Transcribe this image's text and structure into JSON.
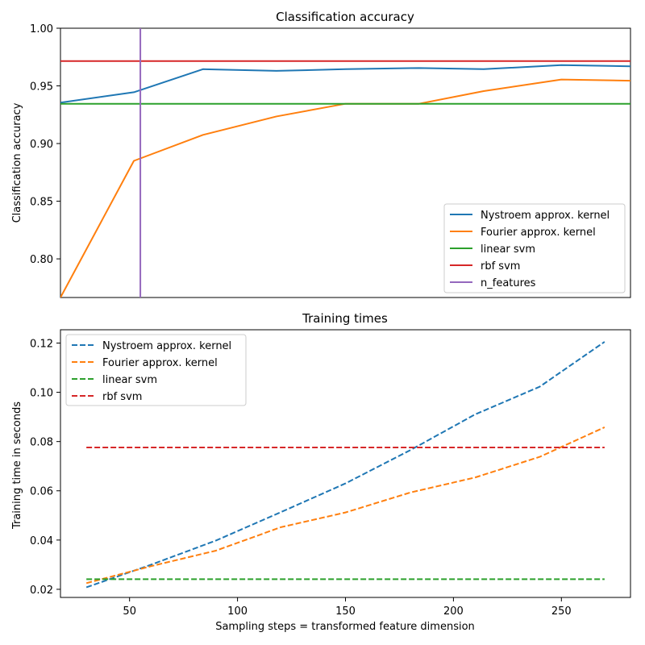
{
  "chart_data": [
    {
      "type": "line",
      "title": "Classification accuracy",
      "xlabel": "",
      "ylabel": "Classification accuracy",
      "xlim": [
        18,
        282
      ],
      "ylim": [
        0.7665,
        1.0
      ],
      "xticks": [],
      "yticks": [
        0.8,
        0.85,
        0.9,
        0.95,
        1.0
      ],
      "ytick_labels": [
        "0.80",
        "0.85",
        "0.90",
        "0.95",
        "1.00"
      ],
      "legend_position": "lower-right",
      "series": [
        {
          "name": "Nystroem approx. kernel",
          "color": "#1f77b4",
          "style": "solid",
          "x": [
            18,
            52,
            84,
            118,
            150,
            184,
            214,
            250,
            282
          ],
          "y": [
            0.9355,
            0.9445,
            0.9645,
            0.963,
            0.9645,
            0.9655,
            0.9645,
            0.968,
            0.967
          ]
        },
        {
          "name": "Fourier approx. kernel",
          "color": "#ff7f0e",
          "style": "solid",
          "x": [
            18,
            52,
            84,
            118,
            150,
            184,
            214,
            250,
            282
          ],
          "y": [
            0.7665,
            0.885,
            0.9075,
            0.9235,
            0.9345,
            0.9345,
            0.9455,
            0.9555,
            0.9545
          ]
        },
        {
          "name": "linear svm",
          "color": "#2ca02c",
          "style": "solid",
          "x": [
            18,
            282
          ],
          "y": [
            0.9345,
            0.9345
          ]
        },
        {
          "name": "rbf svm",
          "color": "#d62728",
          "style": "solid",
          "x": [
            18,
            282
          ],
          "y": [
            0.9715,
            0.9715
          ]
        },
        {
          "name": "n_features",
          "color": "#9467bd",
          "style": "solid",
          "vertical_line_x": 55
        }
      ]
    },
    {
      "type": "line",
      "title": "Training times",
      "xlabel": "Sampling steps = transformed feature dimension",
      "ylabel": "Training time in seconds",
      "xlim": [
        18,
        282
      ],
      "ylim": [
        0.0167,
        0.1254
      ],
      "xticks": [
        50,
        100,
        150,
        200,
        250
      ],
      "xtick_labels": [
        "50",
        "100",
        "150",
        "200",
        "250"
      ],
      "yticks": [
        0.02,
        0.04,
        0.06,
        0.08,
        0.1,
        0.12
      ],
      "ytick_labels": [
        "0.02",
        "0.04",
        "0.06",
        "0.08",
        "0.10",
        "0.12"
      ],
      "legend_position": "upper-left",
      "series": [
        {
          "name": "Nystroem approx. kernel",
          "color": "#1f77b4",
          "style": "dashed",
          "x": [
            30,
            60,
            90,
            120,
            150,
            180,
            210,
            240,
            270
          ],
          "y": [
            0.0208,
            0.03,
            0.0398,
            0.0513,
            0.063,
            0.0765,
            0.091,
            0.1023,
            0.1205
          ]
        },
        {
          "name": "Fourier approx. kernel",
          "color": "#ff7f0e",
          "style": "dashed",
          "x": [
            30,
            60,
            90,
            120,
            150,
            180,
            210,
            240,
            270
          ],
          "y": [
            0.0225,
            0.0294,
            0.0357,
            0.0452,
            0.0512,
            0.0593,
            0.0654,
            0.0738,
            0.0858
          ]
        },
        {
          "name": "linear svm",
          "color": "#2ca02c",
          "style": "dashed",
          "x": [
            30,
            270
          ],
          "y": [
            0.0241,
            0.0241
          ]
        },
        {
          "name": "rbf svm",
          "color": "#d62728",
          "style": "dashed",
          "x": [
            30,
            270
          ],
          "y": [
            0.0776,
            0.0776
          ]
        }
      ]
    }
  ]
}
